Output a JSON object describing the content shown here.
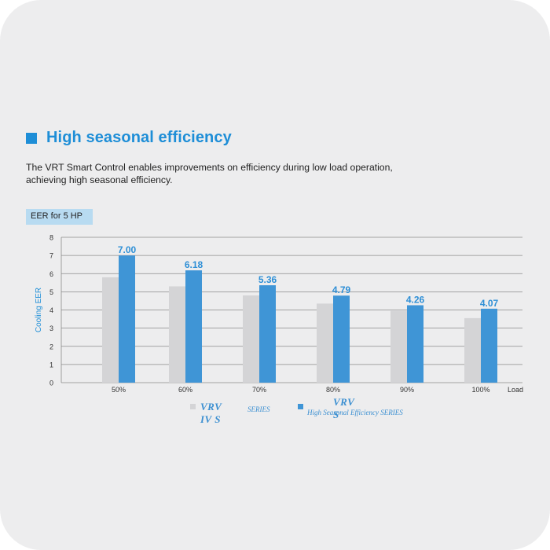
{
  "section": {
    "title": "High seasonal efficiency",
    "description_lines": [
      "The VRT Smart Control enables improvements on efficiency during low load operation,",
      "achieving high seasonal efficiency."
    ],
    "tag": "EER for 5 HP"
  },
  "colors": {
    "accent": "#1e8ed7",
    "series_old": "#d4d4d6",
    "series_new": "#3f95d6",
    "tag_bg": "#b8dbf1"
  },
  "legend": {
    "old": {
      "brand": "VRV IV S",
      "sub": "SERIES"
    },
    "new": {
      "brand": "VRV S",
      "sub": "High Seasonal Efficiency SERIES"
    }
  },
  "chart_data": {
    "type": "bar",
    "categories": [
      "50%",
      "60%",
      "70%",
      "80%",
      "90%",
      "100%"
    ],
    "series": [
      {
        "name": "VRV IV S SERIES",
        "values": [
          5.8,
          5.3,
          4.8,
          4.35,
          3.95,
          3.55
        ]
      },
      {
        "name": "VRV S High Seasonal Efficiency SERIES",
        "values": [
          7.0,
          6.18,
          5.36,
          4.79,
          4.26,
          4.07
        ],
        "labels": [
          "7.00",
          "6.18",
          "5.36",
          "4.79",
          "4.26",
          "4.07"
        ]
      }
    ],
    "xlabel": "Load",
    "ylabel": "Cooling EER",
    "ylim": [
      0,
      8
    ],
    "yticks": [
      "0",
      "1",
      "2",
      "3",
      "4",
      "5",
      "6",
      "7",
      "8"
    ],
    "grid": true
  }
}
